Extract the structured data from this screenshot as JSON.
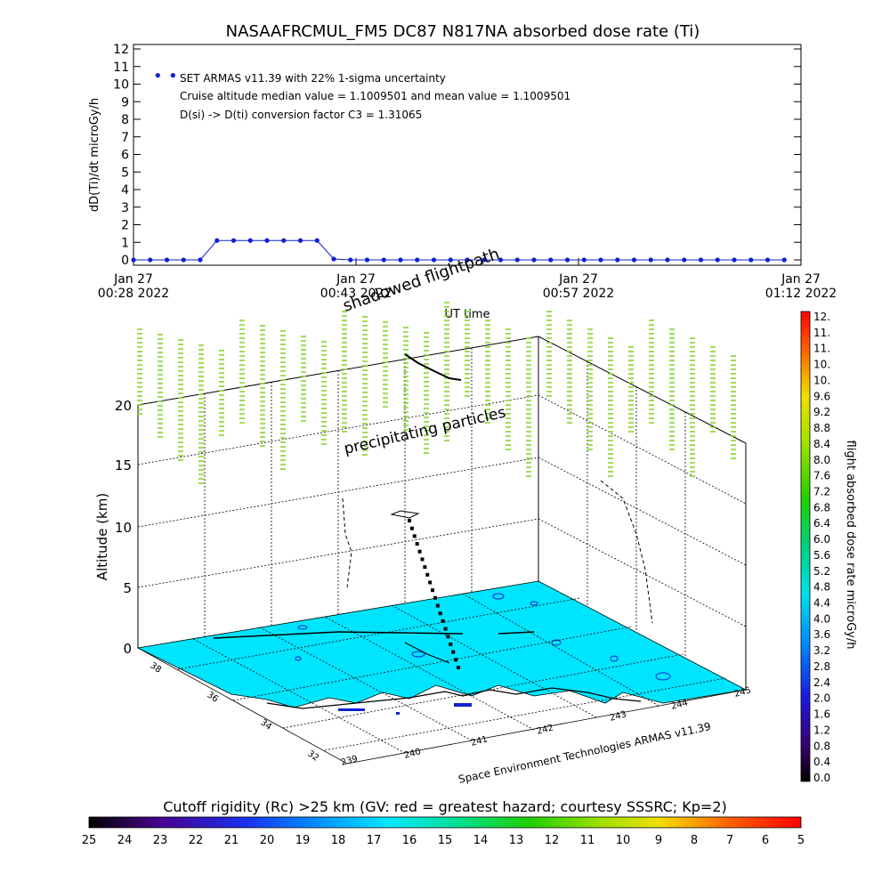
{
  "title": "NASAAFRCMUL_FM5 DC87 N817NA absorbed dose rate (Ti)",
  "top_plot": {
    "ylabel": "dD(Ti)/dt microGy/h",
    "xlabel": "UT time",
    "annotations": [
      "SET ARMAS v11.39 with 22% 1-sigma uncertainty",
      "Cruise altitude median value = 1.1009501 and mean value = 1.1009501",
      "D(si) -> D(ti) conversion factor C3 = 1.31065"
    ],
    "x_ticks": [
      {
        "line1": "Jan 27",
        "line2": "00:28 2022"
      },
      {
        "line1": "Jan 27",
        "line2": "00:43 2022"
      },
      {
        "line1": "Jan 27",
        "line2": "00:57 2022"
      },
      {
        "line1": "Jan 27",
        "line2": "01:12 2022"
      }
    ],
    "y_ticks": [
      "0",
      "1",
      "2",
      "3",
      "4",
      "5",
      "6",
      "7",
      "8",
      "9",
      "10",
      "11",
      "12"
    ]
  },
  "chart_data": [
    {
      "type": "line",
      "title": "NASAAFRCMUL_FM5 DC87 N817NA absorbed dose rate (Ti)",
      "xlabel": "UT time",
      "ylabel": "dD(Ti)/dt microGy/h",
      "xlim_minutes_after_0028": [
        0,
        44
      ],
      "ylim": [
        0,
        12
      ],
      "series": [
        {
          "color": "#1020d0",
          "x": [
            0,
            1.1,
            2.2,
            3.3,
            4.4,
            5.5,
            6.6,
            7.7,
            8.8,
            9.9,
            11,
            12.1,
            13.2,
            14.3,
            15.4,
            16.5,
            17.6,
            18.7,
            19.8,
            20.9,
            22,
            23.1,
            24.2,
            25.3,
            26.4,
            27.5,
            28.6,
            29.7,
            30.8,
            31.9,
            33,
            34.1,
            35.2,
            36.3,
            37.4,
            38.5,
            39.6,
            40.7,
            41.8,
            42.9
          ],
          "y": [
            0,
            0,
            0,
            0,
            0,
            1.1,
            1.1,
            1.1,
            1.1,
            1.1,
            1.1,
            1.1,
            0.05,
            0,
            0,
            0,
            0,
            0,
            0,
            0,
            0,
            0,
            0,
            0,
            0,
            0,
            0,
            0,
            0,
            0,
            0,
            0,
            0,
            0,
            0,
            0,
            0,
            0,
            0,
            0
          ]
        },
        {
          "color": "#1020d0",
          "x": [
            1.6,
            2.6
          ],
          "y": [
            10.5,
            10.5
          ]
        }
      ],
      "grid": false
    },
    {
      "type": "scatter",
      "title": "",
      "zlabel": "Altitude (km)",
      "z_ticks": [
        "0",
        "5",
        "10",
        "15",
        "20"
      ],
      "lat_ticks": [
        "32",
        "34",
        "36",
        "38"
      ],
      "lon_ticks": [
        "239",
        "240",
        "241",
        "242",
        "243",
        "244",
        "245"
      ],
      "annotations": [
        "shadowed flightpath",
        "precipitating particles"
      ],
      "credit": "Space Environment Technologies ARMAS v11.39"
    }
  ],
  "right_colorbar": {
    "label": "flight absorbed dose rate microGy/h",
    "ticks": [
      "12.",
      "11.",
      "11.",
      "10.",
      "10.",
      "9.6",
      "9.2",
      "8.8",
      "8.4",
      "8.0",
      "7.6",
      "7.2",
      "6.8",
      "6.4",
      "6.0",
      "5.6",
      "5.2",
      "4.8",
      "4.4",
      "4.0",
      "3.6",
      "3.2",
      "2.8",
      "2.4",
      "2.0",
      "1.6",
      "1.2",
      "0.8",
      "0.4",
      "0.0"
    ]
  },
  "bottom_colorbar": {
    "label": "Cutoff rigidity (Rc) >25 km (GV: red = greatest hazard; courtesy SSSRC; Kp=2)",
    "ticks": [
      "25",
      "24",
      "23",
      "22",
      "21",
      "20",
      "19",
      "18",
      "17",
      "16",
      "15",
      "14",
      "13",
      "12",
      "11",
      "10",
      "9",
      "8",
      "7",
      "6",
      "5"
    ]
  },
  "colors": {
    "data_blue": "#1020d0",
    "surface_cyan": "#00e5ff",
    "particle_green": "#7ed321"
  }
}
